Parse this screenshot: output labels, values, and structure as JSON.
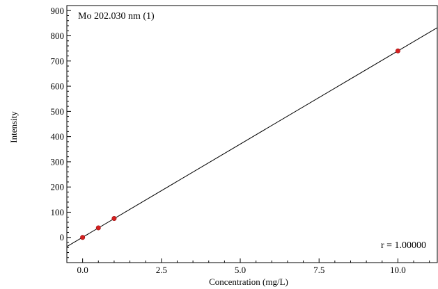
{
  "chart_data": {
    "type": "scatter",
    "title": "",
    "annotations": {
      "top_left": "Mo 202.030 nm (1)",
      "bottom_right": "r = 1.00000"
    },
    "xlabel": "Concentration (mg/L)",
    "ylabel": "Intensity",
    "xlim": [
      -0.5,
      11.25
    ],
    "ylim": [
      -100,
      920
    ],
    "x_ticks": [
      "0.0",
      "2.5",
      "5.0",
      "7.5",
      "10.0"
    ],
    "y_ticks": [
      "0",
      "100",
      "200",
      "300",
      "400",
      "500",
      "600",
      "700",
      "800",
      "900"
    ],
    "grid": false,
    "legend": "none",
    "series": [
      {
        "points": [
          {
            "x": 0.0,
            "y": 0
          },
          {
            "x": 0.5,
            "y": 38
          },
          {
            "x": 1.0,
            "y": 75
          },
          {
            "x": 10.0,
            "y": 740
          }
        ],
        "color": "#d42020"
      }
    ],
    "fit_line": {
      "slope": 73.95,
      "intercept": 0.5,
      "color": "#000000"
    }
  }
}
